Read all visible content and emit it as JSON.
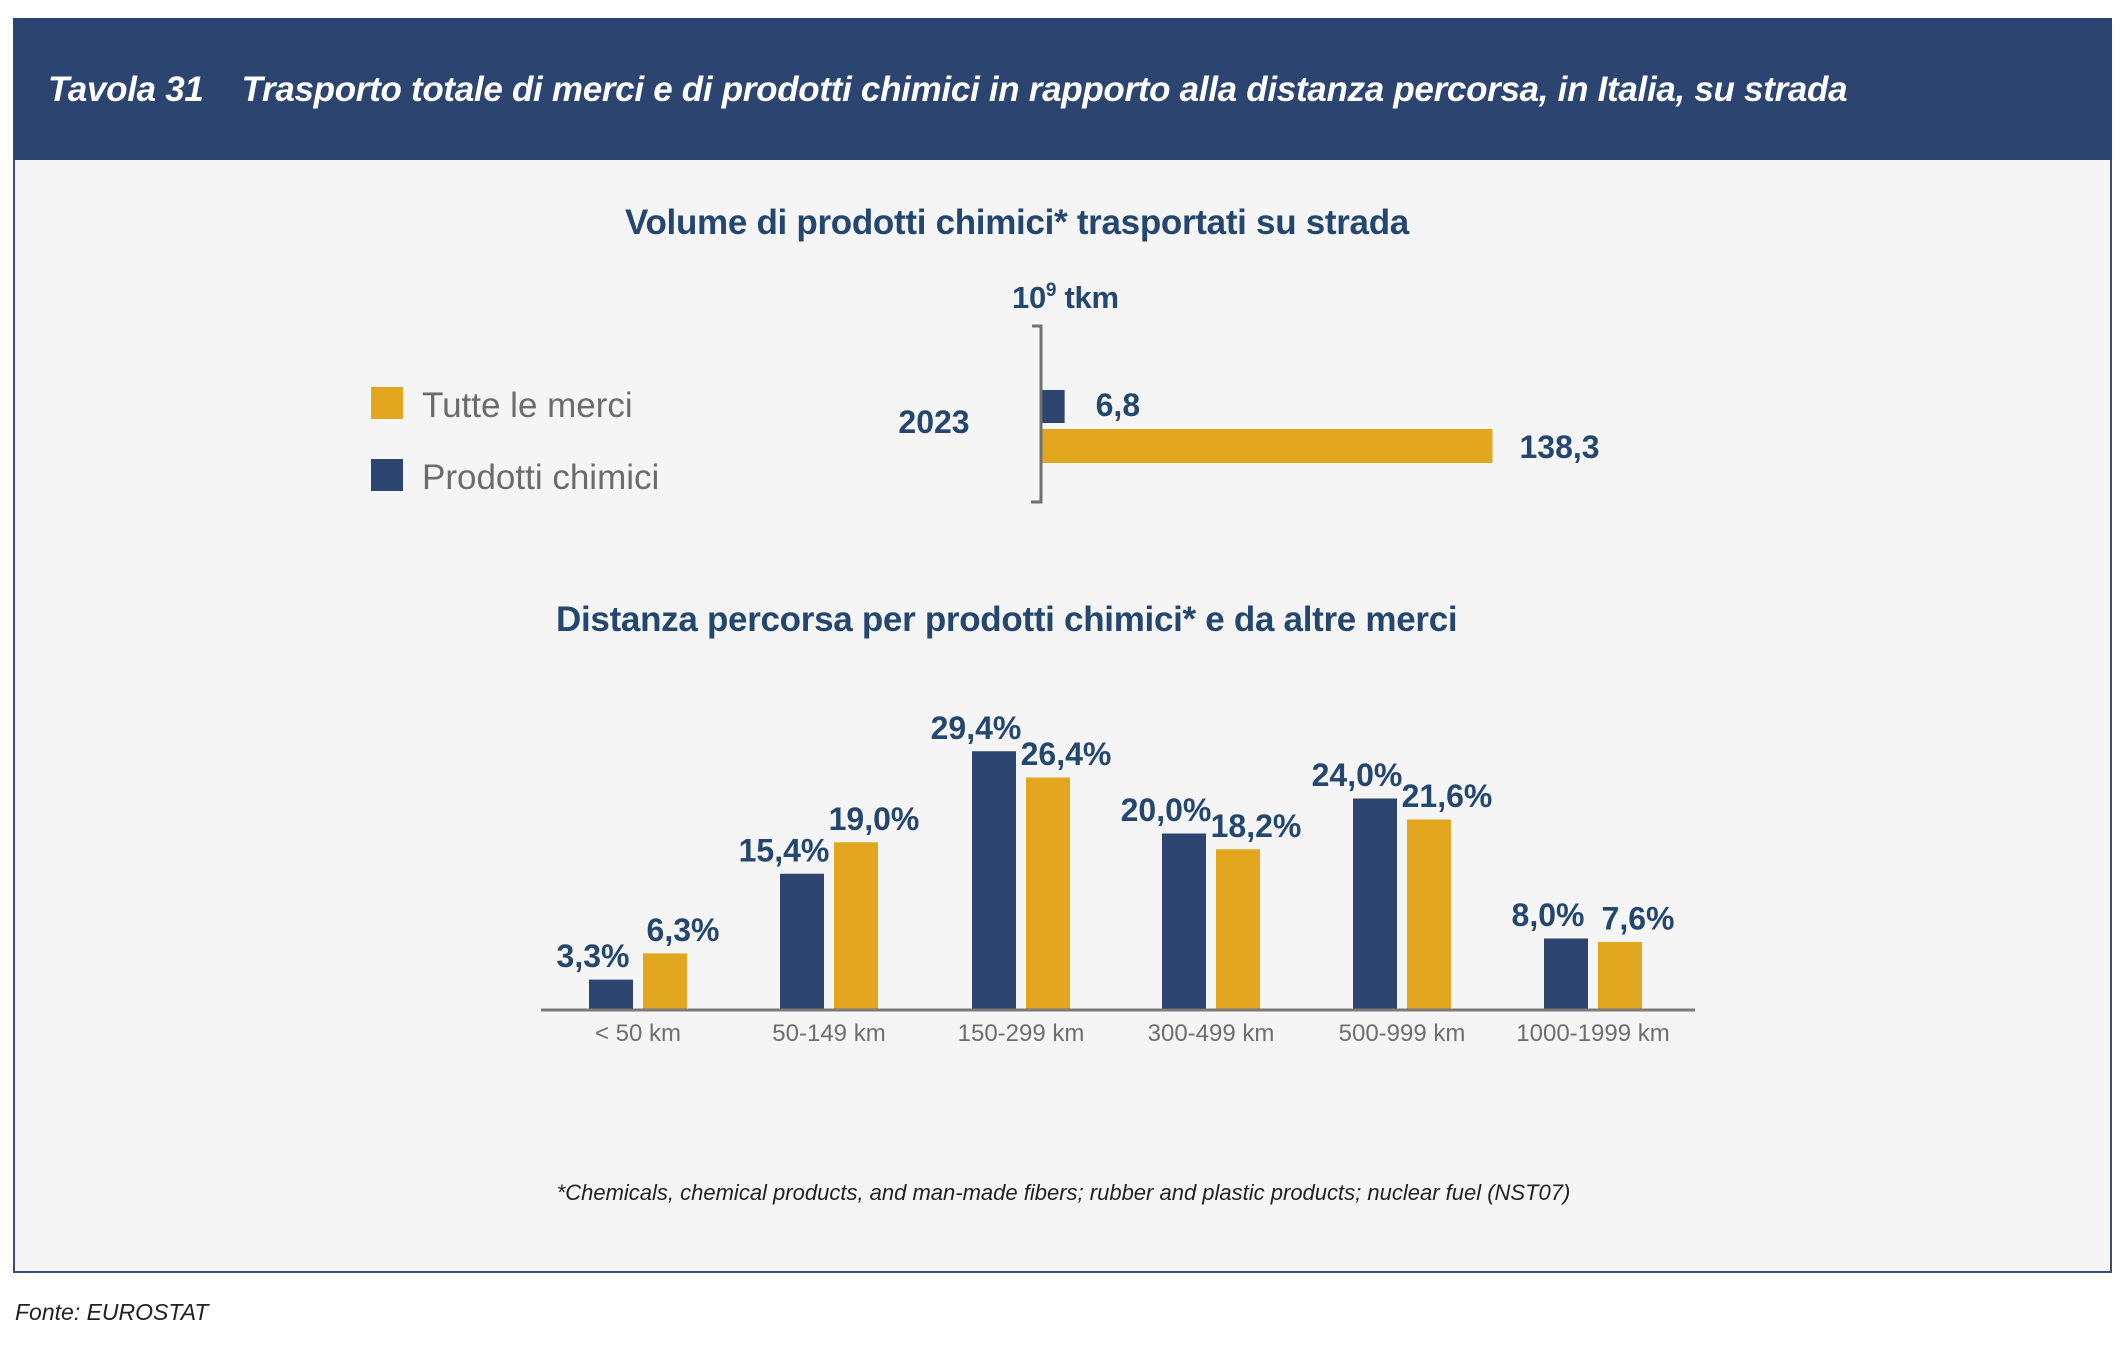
{
  "header": {
    "table_number": "Tavola 31",
    "title": "Trasporto totale di merci e di prodotti chimici in rapporto alla distanza percorsa, in Italia, su strada"
  },
  "colors": {
    "navy": "#2c4470",
    "gold": "#e2a71e",
    "text_dark": "#24476f",
    "text_gray": "#6b6b6b",
    "panel_bg": "#f5f5f5"
  },
  "chart_data": [
    {
      "type": "bar",
      "orientation": "horizontal",
      "title": "Volume di prodotti chimici* trasportati su strada",
      "unit_label": "10^9 tkm",
      "unit_base": "10",
      "unit_exp": "9",
      "unit_suffix": "tkm",
      "categories": [
        "2023"
      ],
      "series": [
        {
          "name": "Prodotti chimici",
          "color": "#2c4470",
          "values": [
            6.8
          ],
          "labels": [
            "6,8"
          ]
        },
        {
          "name": "Tutte le merci",
          "color": "#e2a71e",
          "values": [
            138.3
          ],
          "labels": [
            "138,3"
          ]
        }
      ],
      "legend": {
        "placement": "left",
        "items": [
          {
            "label": "Tutte le merci",
            "color": "#e2a71e"
          },
          {
            "label": "Prodotti chimici",
            "color": "#2c4470"
          }
        ]
      },
      "xlim": [
        0,
        138.3
      ],
      "grid": false
    },
    {
      "type": "bar",
      "orientation": "vertical",
      "title": "Distanza percorsa per prodotti chimici* e da altre merci",
      "categories": [
        "< 50 km",
        "50-149 km",
        "150-299 km",
        "300-499 km",
        "500-999 km",
        "1000-1999 km"
      ],
      "series": [
        {
          "name": "Prodotti chimici",
          "color": "#2c4470",
          "values": [
            3.3,
            15.4,
            29.4,
            20.0,
            24.0,
            8.0
          ],
          "labels": [
            "3,3%",
            "15,4%",
            "29,4%",
            "20,0%",
            "24,0%",
            "8,0%"
          ]
        },
        {
          "name": "Tutte le merci",
          "color": "#e2a71e",
          "values": [
            6.3,
            19.0,
            26.4,
            18.2,
            21.6,
            7.6
          ],
          "labels": [
            "6,3%",
            "19,0%",
            "26,4%",
            "18,2%",
            "21,6%",
            "7,6%"
          ]
        }
      ],
      "ylabel": "%",
      "ylim": [
        0,
        30
      ],
      "grid": false
    }
  ],
  "footnote": "*Chemicals, chemical products, and man-made fibers; rubber and plastic products; nuclear fuel (NST07)",
  "source": "Fonte: EUROSTAT"
}
